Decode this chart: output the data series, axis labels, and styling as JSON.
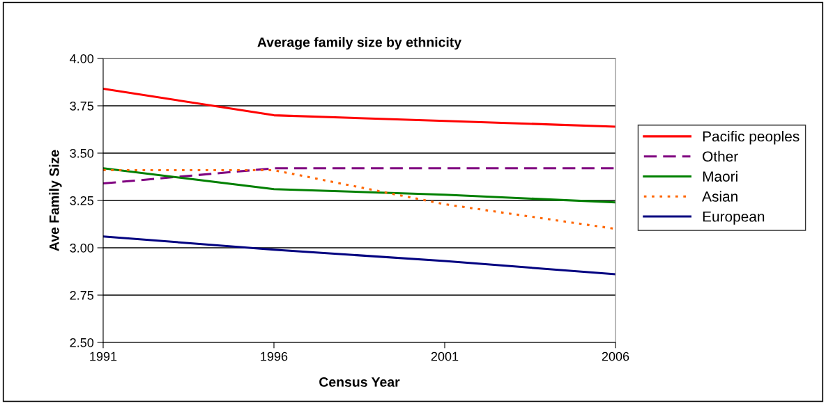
{
  "chart_data": {
    "type": "line",
    "title": "Average family size by ethnicity",
    "xlabel": "Census Year",
    "ylabel": "Ave Family Size",
    "x": [
      1991,
      1996,
      2001,
      2006
    ],
    "series": [
      {
        "name": "Pacific peoples",
        "color": "#ff0000",
        "line_style": "solid",
        "values": [
          3.84,
          3.7,
          3.67,
          3.64
        ]
      },
      {
        "name": "Other",
        "color": "#800080",
        "line_style": "dashed",
        "values": [
          3.34,
          3.42,
          3.42,
          3.42
        ]
      },
      {
        "name": "Maori",
        "color": "#008000",
        "line_style": "solid",
        "values": [
          3.42,
          3.31,
          3.28,
          3.24
        ]
      },
      {
        "name": "Asian",
        "color": "#ff6600",
        "line_style": "dotted",
        "values": [
          3.41,
          3.41,
          3.23,
          3.1
        ]
      },
      {
        "name": "European",
        "color": "#000080",
        "line_style": "solid",
        "values": [
          3.06,
          2.99,
          2.93,
          2.86
        ]
      }
    ],
    "xlim": [
      1991,
      2006
    ],
    "xticks": [
      1991,
      1996,
      2001,
      2006
    ],
    "ylim": [
      2.5,
      4.0
    ],
    "yticks": [
      {
        "value": 2.5,
        "label": "2.50"
      },
      {
        "value": 2.75,
        "label": "2.75"
      },
      {
        "value": 3.0,
        "label": "3.00"
      },
      {
        "value": 3.25,
        "label": "3.25"
      },
      {
        "value": 3.5,
        "label": "3.50"
      },
      {
        "value": 3.75,
        "label": "3.75"
      },
      {
        "value": 4.0,
        "label": "4.00"
      }
    ],
    "grid": "y",
    "legend": "right",
    "marker": "none"
  }
}
